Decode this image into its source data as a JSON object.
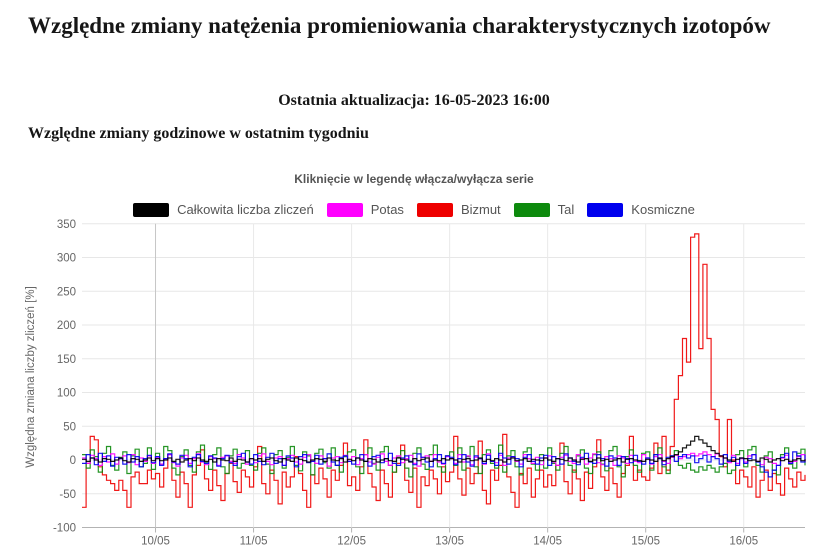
{
  "page": {
    "title": "Względne zmiany natężenia promieniowania charakterystycznych izotopów",
    "last_update": "Ostatnia aktualizacja: 16-05-2023 16:00",
    "section_heading": "Względne zmiany godzinowe w ostatnim tygodniu"
  },
  "chart": {
    "hint": "Kliknięcie w legendę włącza/wyłącza serie"
  },
  "chart_data": {
    "type": "line",
    "step": true,
    "title": "",
    "xlabel": "",
    "ylabel": "Względna zmiana liczby zliczeń [%]",
    "ylim": [
      -100,
      350
    ],
    "grid": true,
    "legend_position": "top-center",
    "x_interval_hours": 1,
    "x_tick_labels": [
      "10/05",
      "11/05",
      "12/05",
      "13/05",
      "14/05",
      "15/05",
      "16/05"
    ],
    "x_tick_indices": [
      18,
      42,
      66,
      90,
      114,
      138,
      162
    ],
    "y_ticks": [
      350,
      300,
      250,
      200,
      150,
      100,
      50,
      0,
      -50,
      -100
    ],
    "series": [
      {
        "name": "Całkowita liczba zliczeń",
        "color": "#000000",
        "values": [
          1,
          -2,
          3,
          0,
          -3,
          2,
          1,
          -2,
          0,
          3,
          -1,
          -3,
          2,
          1,
          -2,
          0,
          3,
          -1,
          2,
          -1,
          0,
          3,
          -2,
          1,
          -3,
          0,
          2,
          -1,
          3,
          0,
          -2,
          1,
          -3,
          2,
          0,
          -1,
          3,
          -2,
          1,
          0,
          -3,
          2,
          0,
          2,
          -2,
          1,
          3,
          -1,
          -3,
          2,
          0,
          -2,
          3,
          1,
          -1,
          -3,
          0,
          2,
          1,
          -2,
          3,
          0,
          -1,
          2,
          -3,
          1,
          -1,
          3,
          0,
          -2,
          2,
          1,
          -3,
          0,
          2,
          -1,
          -2,
          3,
          1,
          0,
          -3,
          2,
          -1,
          1,
          3,
          -2,
          0,
          -1,
          2,
          0,
          2,
          0,
          -3,
          1,
          2,
          -1,
          0,
          3,
          -2,
          1,
          -1,
          2,
          0,
          -3,
          1,
          3,
          -1,
          0,
          2,
          -2,
          1,
          0,
          -1,
          3,
          0,
          -2,
          2,
          1,
          -1,
          3,
          0,
          -3,
          1,
          2,
          -2,
          0,
          3,
          -1,
          1,
          -2,
          0,
          2,
          -3,
          1,
          2,
          0,
          -1,
          -2,
          1,
          0,
          -2,
          3,
          -1,
          2,
          5,
          8,
          12,
          18,
          22,
          28,
          35,
          30,
          25,
          20,
          14,
          10,
          6,
          3,
          0,
          -2,
          1,
          3,
          2,
          -1,
          0,
          -2,
          3,
          1,
          -3,
          0,
          2,
          -1,
          1,
          -2,
          0,
          2,
          -1,
          1
        ]
      },
      {
        "name": "Potas",
        "color": "#ff00ff",
        "values": [
          3,
          -5,
          7,
          2,
          -8,
          5,
          -3,
          9,
          -6,
          2,
          6,
          -4,
          8,
          -7,
          3,
          -2,
          6,
          -5,
          4,
          -6,
          2,
          8,
          -4,
          -9,
          3,
          7,
          -5,
          2,
          9,
          -3,
          -7,
          5,
          2,
          -8,
          4,
          6,
          -2,
          -5,
          8,
          3,
          -6,
          2,
          -4,
          6,
          9,
          -2,
          -7,
          3,
          5,
          -8,
          2,
          7,
          -3,
          -6,
          4,
          8,
          -2,
          -5,
          6,
          2,
          -9,
          3,
          5,
          -4,
          7,
          -2,
          5,
          -7,
          2,
          8,
          -3,
          -6,
          4,
          9,
          -2,
          -8,
          3,
          6,
          -4,
          2,
          7,
          -5,
          -9,
          4,
          6,
          -2,
          8,
          -3,
          -6,
          5,
          2,
          -5,
          8,
          -3,
          6,
          -7,
          4,
          2,
          -6,
          9,
          -2,
          -4,
          7,
          -8,
          3,
          5,
          -2,
          -6,
          8,
          2,
          -5,
          4,
          -7,
          3,
          6,
          -3,
          -8,
          4,
          7,
          -2,
          -5,
          8,
          2,
          -6,
          3,
          9,
          -4,
          -7,
          5,
          2,
          -8,
          6,
          3,
          -5,
          7,
          -2,
          -4,
          8,
          3,
          -6,
          5,
          8,
          -2,
          -5,
          4,
          7,
          2,
          5,
          8,
          10,
          6,
          9,
          12,
          8,
          5,
          9,
          6,
          3,
          -4,
          7,
          -5,
          2,
          -3,
          6,
          8,
          -2,
          -7,
          4,
          2,
          -5,
          -8,
          3,
          7,
          -4,
          -2,
          5,
          8,
          -3
        ]
      },
      {
        "name": "Bizmut",
        "color": "#ee0000",
        "values": [
          -70,
          -5,
          35,
          30,
          -10,
          -22,
          -30,
          -35,
          -45,
          -30,
          -45,
          -70,
          -25,
          -18,
          -35,
          -35,
          -15,
          -28,
          -20,
          -40,
          -12,
          8,
          -30,
          -55,
          -18,
          -35,
          -70,
          -22,
          -8,
          15,
          -28,
          -45,
          -15,
          -38,
          -60,
          -20,
          -5,
          -32,
          -48,
          -15,
          -25,
          -40,
          -10,
          20,
          -35,
          -50,
          -15,
          -30,
          -65,
          -18,
          -40,
          -25,
          5,
          -20,
          -45,
          -70,
          -22,
          -35,
          -12,
          -28,
          -55,
          -15,
          -30,
          -8,
          25,
          -38,
          -25,
          -45,
          -10,
          30,
          -20,
          -40,
          -60,
          -15,
          -35,
          -55,
          -18,
          -5,
          22,
          -30,
          -48,
          -12,
          -70,
          -25,
          -38,
          -15,
          -28,
          -50,
          -10,
          -32,
          -18,
          35,
          -28,
          -52,
          -12,
          -35,
          -20,
          28,
          -45,
          -65,
          -15,
          -30,
          -8,
          38,
          -25,
          -48,
          -70,
          -20,
          -35,
          -12,
          -55,
          -28,
          -15,
          -40,
          -22,
          -38,
          -8,
          25,
          -32,
          -50,
          -15,
          -28,
          -60,
          -18,
          -42,
          -10,
          30,
          -25,
          -45,
          -12,
          -35,
          -55,
          -20,
          -8,
          35,
          -30,
          -15,
          -25,
          -30,
          -12,
          25,
          -20,
          35,
          -15,
          20,
          90,
          125,
          180,
          145,
          330,
          335,
          165,
          290,
          180,
          75,
          60,
          5,
          -10,
          60,
          0,
          -35,
          -15,
          -25,
          -40,
          -10,
          -55,
          -30,
          -15,
          -45,
          -20,
          -35,
          -52,
          -12,
          -28,
          -40,
          -18,
          -30,
          -22
        ]
      },
      {
        "name": "Tal",
        "color": "#0d8a0d",
        "values": [
          8,
          -12,
          15,
          5,
          -18,
          10,
          20,
          -8,
          -15,
          4,
          12,
          -20,
          6,
          16,
          -10,
          -5,
          18,
          -14,
          10,
          -6,
          20,
          14,
          -12,
          -22,
          5,
          15,
          -8,
          -18,
          12,
          22,
          -4,
          -14,
          8,
          18,
          -10,
          -20,
          6,
          16,
          -12,
          -5,
          14,
          -8,
          -15,
          10,
          18,
          -6,
          -20,
          8,
          14,
          -12,
          4,
          20,
          -8,
          -16,
          12,
          6,
          -22,
          10,
          16,
          -4,
          -12,
          18,
          -8,
          -18,
          5,
          12,
          15,
          -10,
          -20,
          8,
          18,
          -5,
          -15,
          12,
          20,
          -8,
          -18,
          4,
          14,
          -12,
          -25,
          10,
          18,
          -6,
          -14,
          8,
          22,
          -10,
          -18,
          6,
          12,
          -8,
          18,
          -15,
          5,
          20,
          -10,
          -20,
          8,
          15,
          -5,
          -12,
          22,
          -18,
          6,
          14,
          -10,
          -22,
          12,
          18,
          -6,
          -15,
          8,
          -12,
          18,
          -5,
          -15,
          10,
          20,
          -8,
          -18,
          6,
          15,
          -12,
          -20,
          8,
          12,
          -6,
          -16,
          14,
          20,
          -10,
          -25,
          5,
          15,
          -8,
          -18,
          10,
          12,
          -15,
          8,
          18,
          -10,
          -20,
          6,
          14,
          -8,
          -12,
          -5,
          -15,
          -18,
          -10,
          -15,
          -8,
          -12,
          -18,
          -10,
          -5,
          -20,
          -15,
          8,
          14,
          -10,
          15,
          20,
          -8,
          -18,
          6,
          12,
          -15,
          -22,
          8,
          18,
          -6,
          -12,
          10,
          16,
          -8
        ]
      },
      {
        "name": "Kosmiczne",
        "color": "#0000ee",
        "values": [
          -5,
          8,
          3,
          -7,
          10,
          -2,
          6,
          -9,
          4,
          2,
          -6,
          8,
          -3,
          5,
          -10,
          2,
          7,
          -4,
          5,
          -8,
          2,
          9,
          -3,
          -6,
          7,
          2,
          -10,
          4,
          8,
          -2,
          -5,
          6,
          3,
          -9,
          2,
          7,
          -4,
          -8,
          5,
          10,
          -3,
          -6,
          8,
          -2,
          -7,
          4,
          10,
          -5,
          2,
          -8,
          6,
          3,
          -10,
          5,
          8,
          -4,
          -2,
          7,
          -6,
          2,
          9,
          -3,
          -8,
          4,
          6,
          -2,
          -6,
          3,
          8,
          -2,
          -9,
          5,
          7,
          -4,
          2,
          10,
          -5,
          -8,
          3,
          6,
          -2,
          -7,
          9,
          4,
          -3,
          -10,
          2,
          8,
          -5,
          6,
          4,
          -7,
          2,
          8,
          -3,
          -9,
          6,
          2,
          -5,
          7,
          -2,
          -8,
          10,
          3,
          -6,
          5,
          2,
          -10,
          4,
          8,
          -2,
          -6,
          3,
          7,
          -8,
          5,
          2,
          -6,
          9,
          3,
          -2,
          -7,
          4,
          10,
          -3,
          -5,
          8,
          2,
          -9,
          6,
          3,
          -8,
          5,
          2,
          -4,
          7,
          -2,
          -6,
          3,
          -5,
          8,
          2,
          -7,
          4,
          6,
          -2,
          5,
          8,
          3,
          6,
          -4,
          2,
          7,
          -3,
          5,
          2,
          -6,
          8,
          -2,
          4,
          -8,
          3,
          -5,
          2,
          8,
          -3,
          -10,
          -18,
          -25,
          -15,
          -8,
          4,
          10,
          -5,
          12,
          6,
          -3,
          8
        ]
      }
    ]
  }
}
